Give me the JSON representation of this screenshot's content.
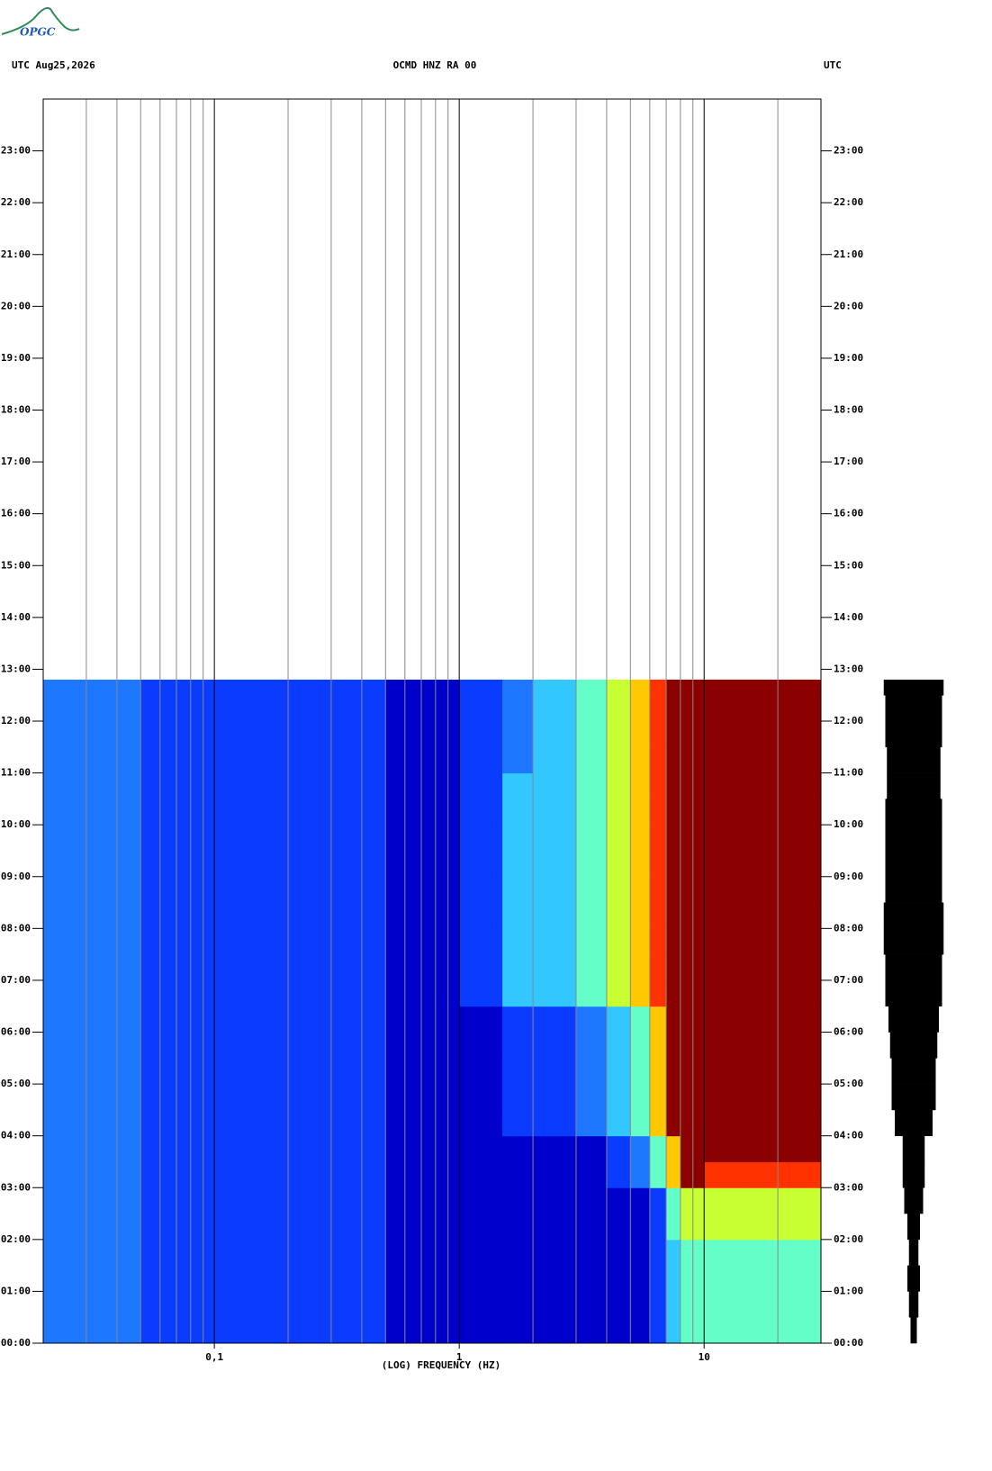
{
  "logo": "OPGC",
  "chart_data": {
    "type": "spectrogram",
    "header_left": "UTC  Aug25,2026",
    "title": "OCMD HNZ RA 00",
    "header_right": "UTC",
    "xlabel": "(LOG) FREQUENCY (HZ)",
    "xscale": "log",
    "xlim": [
      0.02,
      30
    ],
    "ylim": [
      0,
      24
    ],
    "xticks": [
      {
        "value": 0.1,
        "label": "0,1"
      },
      1,
      10
    ],
    "xgrid": [
      0.03,
      0.04,
      0.05,
      0.06,
      0.07,
      0.08,
      0.09,
      0.1,
      0.2,
      0.3,
      0.4,
      0.5,
      0.6,
      0.7,
      0.8,
      0.9,
      1,
      2,
      3,
      4,
      5,
      6,
      7,
      8,
      9,
      10,
      20
    ],
    "yticks": [
      {
        "value": 0,
        "label": "00:00"
      },
      {
        "value": 1,
        "label": "01:00"
      },
      {
        "value": 2,
        "label": "02:00"
      },
      {
        "value": 3,
        "label": "03:00"
      },
      {
        "value": 4,
        "label": "04:00"
      },
      {
        "value": 5,
        "label": "05:00"
      },
      {
        "value": 6,
        "label": "06:00"
      },
      {
        "value": 7,
        "label": "07:00"
      },
      {
        "value": 8,
        "label": "08:00"
      },
      {
        "value": 9,
        "label": "09:00"
      },
      {
        "value": 10,
        "label": "10:00"
      },
      {
        "value": 11,
        "label": "11:00"
      },
      {
        "value": 12,
        "label": "12:00"
      },
      {
        "value": 13,
        "label": "13:00"
      },
      {
        "value": 14,
        "label": "14:00"
      },
      {
        "value": 15,
        "label": "15:00"
      },
      {
        "value": 16,
        "label": "16:00"
      },
      {
        "value": 17,
        "label": "17:00"
      },
      {
        "value": 18,
        "label": "18:00"
      },
      {
        "value": 19,
        "label": "19:00"
      },
      {
        "value": 20,
        "label": "20:00"
      },
      {
        "value": 21,
        "label": "21:00"
      },
      {
        "value": 22,
        "label": "22:00"
      },
      {
        "value": 23,
        "label": "23:00"
      }
    ],
    "xbins": [
      0.02,
      0.05,
      0.1,
      0.2,
      0.5,
      1,
      1.5,
      2,
      3,
      4,
      5,
      6,
      7,
      8,
      10,
      15,
      20,
      30
    ],
    "ybins": [
      0,
      0.5,
      1,
      1.5,
      2,
      2.5,
      3,
      3.5,
      4,
      4.5,
      5,
      5.5,
      6,
      6.5,
      7,
      7.5,
      8,
      8.5,
      9,
      9.5,
      10,
      10.5,
      11,
      11.5,
      12,
      12.5,
      12.8
    ],
    "colors": [
      "#00008b",
      "#0000cd",
      "#0a3cff",
      "#1e78ff",
      "#32c8ff",
      "#64ffc8",
      "#c8ff32",
      "#ffc800",
      "#ff3200",
      "#8b0000"
    ],
    "z": [
      [
        3,
        2,
        2,
        2,
        1,
        1,
        1,
        1,
        1,
        1,
        1,
        2,
        4,
        5,
        5,
        5,
        5
      ],
      [
        3,
        2,
        2,
        2,
        1,
        1,
        1,
        1,
        1,
        1,
        1,
        2,
        4,
        5,
        5,
        5,
        5
      ],
      [
        3,
        2,
        2,
        2,
        1,
        1,
        1,
        1,
        1,
        1,
        1,
        2,
        4,
        5,
        5,
        5,
        5
      ],
      [
        3,
        2,
        2,
        2,
        1,
        1,
        1,
        1,
        1,
        1,
        1,
        2,
        4,
        5,
        5,
        5,
        5
      ],
      [
        3,
        2,
        2,
        2,
        1,
        1,
        1,
        1,
        1,
        1,
        1,
        2,
        5,
        6,
        6,
        6,
        6
      ],
      [
        3,
        2,
        2,
        2,
        1,
        1,
        1,
        1,
        1,
        1,
        1,
        2,
        5,
        6,
        6,
        6,
        6
      ],
      [
        3,
        2,
        2,
        2,
        1,
        1,
        1,
        1,
        1,
        2,
        3,
        5,
        7,
        9,
        8,
        8,
        8
      ],
      [
        3,
        2,
        2,
        2,
        1,
        1,
        1,
        1,
        1,
        2,
        3,
        5,
        7,
        9,
        9,
        9,
        9
      ],
      [
        3,
        2,
        2,
        2,
        1,
        1,
        2,
        2,
        3,
        4,
        5,
        7,
        9,
        9,
        9,
        9,
        9
      ],
      [
        3,
        2,
        2,
        2,
        1,
        1,
        2,
        2,
        3,
        4,
        5,
        7,
        9,
        9,
        9,
        9,
        9
      ],
      [
        3,
        2,
        2,
        2,
        1,
        1,
        2,
        2,
        3,
        4,
        5,
        7,
        9,
        9,
        9,
        9,
        9
      ],
      [
        3,
        2,
        2,
        2,
        1,
        1,
        2,
        2,
        3,
        4,
        5,
        7,
        9,
        9,
        9,
        9,
        9
      ],
      [
        3,
        2,
        2,
        2,
        1,
        1,
        2,
        2,
        3,
        4,
        5,
        7,
        9,
        9,
        9,
        9,
        9
      ],
      [
        3,
        2,
        2,
        2,
        1,
        2,
        4,
        4,
        5,
        6,
        7,
        8,
        9,
        9,
        9,
        9,
        9
      ],
      [
        3,
        2,
        2,
        2,
        1,
        2,
        4,
        4,
        5,
        6,
        7,
        8,
        9,
        9,
        9,
        9,
        9
      ],
      [
        3,
        2,
        2,
        2,
        1,
        2,
        4,
        4,
        5,
        6,
        7,
        8,
        9,
        9,
        9,
        9,
        9
      ],
      [
        3,
        2,
        2,
        2,
        1,
        2,
        4,
        4,
        5,
        6,
        7,
        8,
        9,
        9,
        9,
        9,
        9
      ],
      [
        3,
        2,
        2,
        2,
        1,
        2,
        4,
        4,
        5,
        6,
        7,
        8,
        9,
        9,
        9,
        9,
        9
      ],
      [
        3,
        2,
        2,
        2,
        1,
        2,
        4,
        4,
        5,
        6,
        7,
        8,
        9,
        9,
        9,
        9,
        9
      ],
      [
        3,
        2,
        2,
        2,
        1,
        2,
        4,
        4,
        5,
        6,
        7,
        8,
        9,
        9,
        9,
        9,
        9
      ],
      [
        3,
        2,
        2,
        2,
        1,
        2,
        4,
        4,
        5,
        6,
        7,
        8,
        9,
        9,
        9,
        9,
        9
      ],
      [
        3,
        2,
        2,
        2,
        1,
        2,
        4,
        4,
        5,
        6,
        7,
        8,
        9,
        9,
        9,
        9,
        9
      ],
      [
        3,
        2,
        2,
        2,
        1,
        2,
        3,
        4,
        5,
        6,
        7,
        8,
        9,
        9,
        9,
        9,
        9
      ],
      [
        3,
        2,
        2,
        2,
        1,
        2,
        3,
        4,
        5,
        6,
        7,
        8,
        9,
        9,
        9,
        9,
        9
      ],
      [
        3,
        2,
        2,
        2,
        1,
        2,
        3,
        4,
        5,
        6,
        7,
        8,
        9,
        9,
        9,
        9,
        9
      ],
      [
        3,
        2,
        2,
        2,
        1,
        2,
        3,
        4,
        5,
        6,
        7,
        8,
        9,
        9,
        9,
        9,
        9
      ]
    ],
    "trace_amplitude": [
      0.1,
      0.15,
      0.2,
      0.15,
      0.2,
      0.3,
      0.35,
      0.35,
      0.6,
      0.7,
      0.7,
      0.75,
      0.8,
      0.9,
      0.9,
      0.95,
      0.95,
      0.9,
      0.9,
      0.9,
      0.9,
      0.85,
      0.85,
      0.9,
      0.9,
      0.95
    ]
  }
}
